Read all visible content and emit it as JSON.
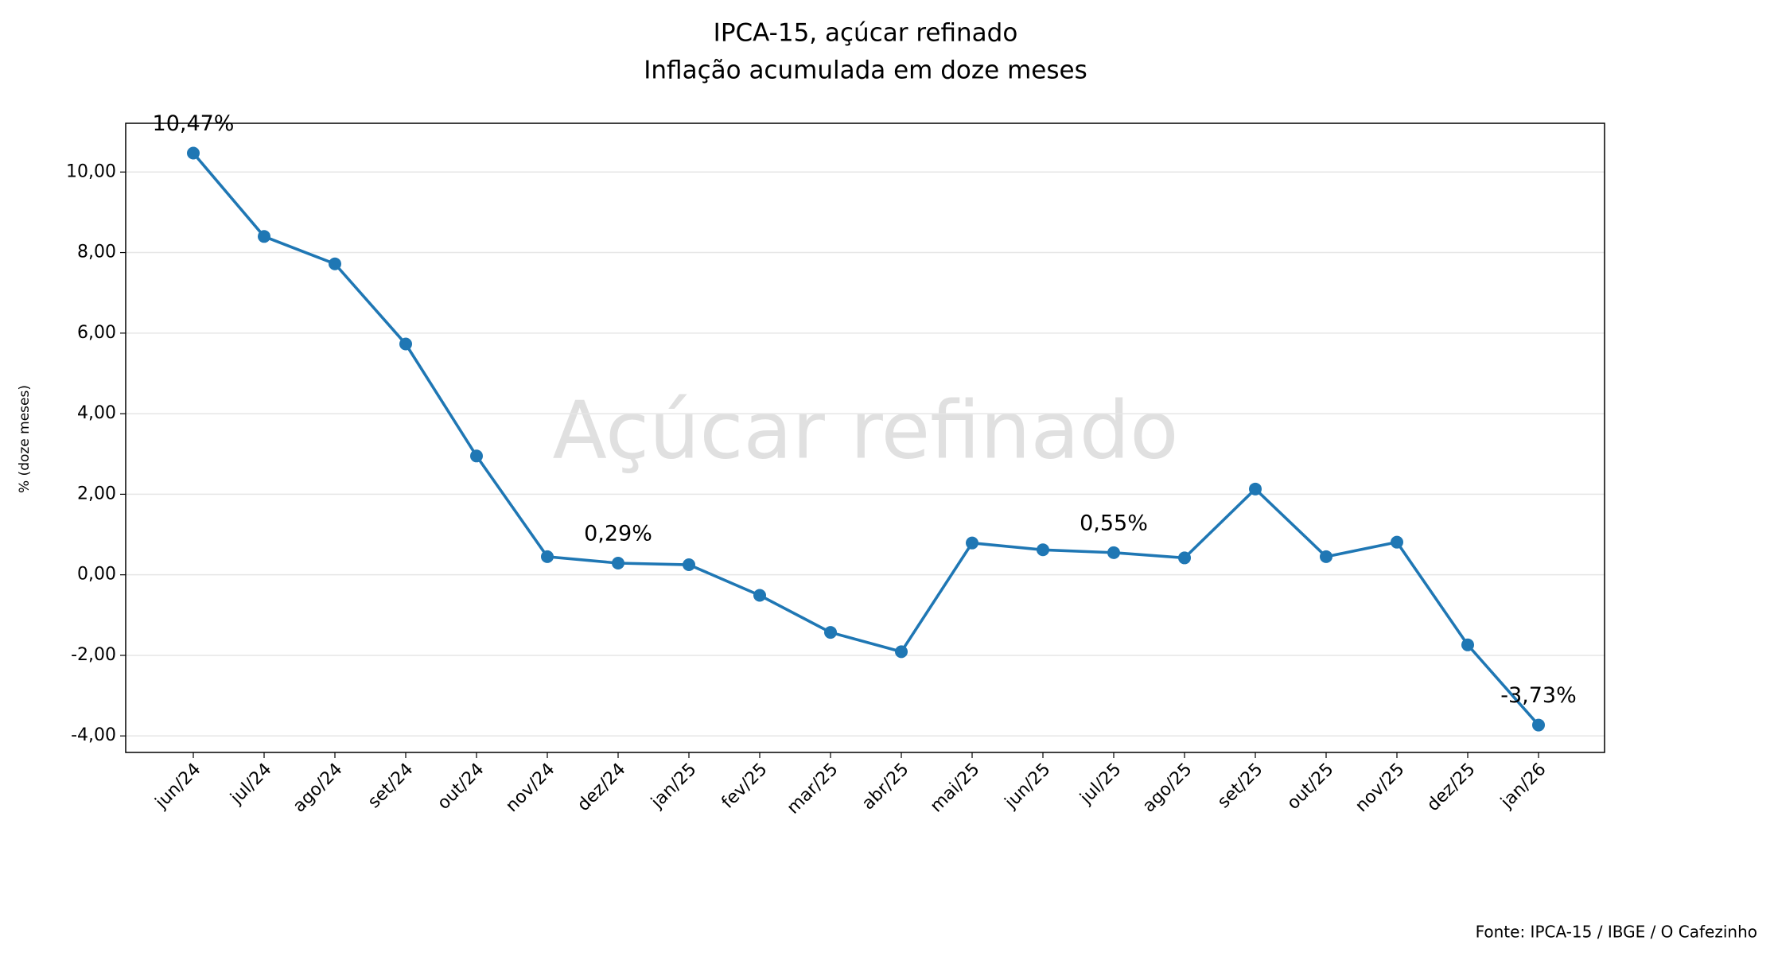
{
  "chart_data": {
    "type": "line",
    "title": "IPCA-15, açúcar refinado",
    "subtitle": "Inflação acumulada em doze meses",
    "y_label": "% (doze meses)",
    "watermark": "Açúcar refinado",
    "source": "Fonte: IPCA-15 / IBGE / O Cafezinho",
    "categories": [
      "jun/24",
      "jul/24",
      "ago/24",
      "set/24",
      "out/24",
      "nov/24",
      "dez/24",
      "jan/25",
      "fev/25",
      "mar/25",
      "abr/25",
      "mai/25",
      "jun/25",
      "jul/25",
      "ago/25",
      "set/25",
      "out/25",
      "nov/25",
      "dez/25",
      "jan/26"
    ],
    "series": [
      {
        "name": "açúcar refinado",
        "color": "#1f77b4",
        "values": [
          10.47,
          8.4,
          7.72,
          5.73,
          2.95,
          0.45,
          0.29,
          0.25,
          -0.51,
          -1.43,
          -1.91,
          0.79,
          0.62,
          0.55,
          0.42,
          2.13,
          0.45,
          0.81,
          -1.74,
          -3.73
        ],
        "value_labels": [
          "10,47%",
          null,
          null,
          null,
          null,
          null,
          "0,29%",
          null,
          null,
          null,
          null,
          null,
          null,
          "0,55%",
          null,
          null,
          null,
          null,
          null,
          "-3,73%"
        ]
      }
    ],
    "ylim": [
      -4.41,
      11.21
    ],
    "yticks": [
      {
        "value": -4,
        "label": "-4,00"
      },
      {
        "value": -2,
        "label": "-2,00"
      },
      {
        "value": 0,
        "label": "0,00"
      },
      {
        "value": 2,
        "label": "2,00"
      },
      {
        "value": 4,
        "label": "4,00"
      },
      {
        "value": 6,
        "label": "6,00"
      },
      {
        "value": 8,
        "label": "8,00"
      },
      {
        "value": 10,
        "label": "10,00"
      }
    ],
    "grid": true
  }
}
